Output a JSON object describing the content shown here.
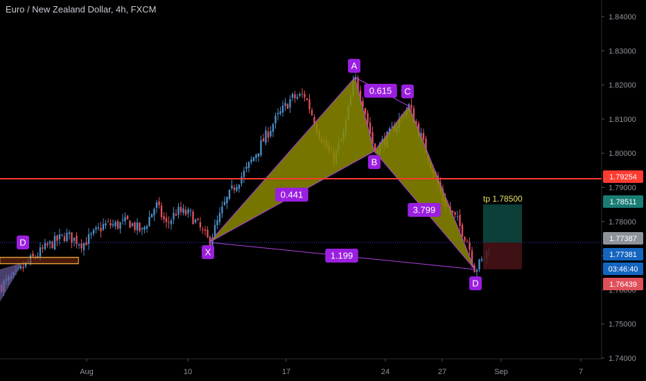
{
  "title": "Euro / New Zealand Dollar, 4h, FXCM",
  "colors": {
    "background": "#000000",
    "up_candle": "#4a90c8",
    "down_candle": "#e0505a",
    "pattern_fill": "#8a8a00",
    "pattern_edge": "#b040e0",
    "label_bg": "#9b1fe0",
    "resistance": "#ff3b30",
    "axis_text": "#8e929b",
    "tp_text": "#e8e26a"
  },
  "chart_data": {
    "type": "candlestick",
    "y_ticks": [
      "1.84000",
      "1.83000",
      "1.82000",
      "1.81000",
      "1.80000",
      "1.79000",
      "1.78000",
      "1.77000",
      "1.76000",
      "1.75000",
      "1.74000"
    ],
    "ylim": [
      1.739,
      1.8455
    ],
    "x_ticks": [
      "Aug",
      "10",
      "17",
      "24",
      "27",
      "Sep",
      "7"
    ],
    "price_labels": [
      {
        "value": "1.79254",
        "color": "#ff3b30"
      },
      {
        "value": "1.78511",
        "color": "#1a7d74"
      },
      {
        "value": "1.77387",
        "color": "#8e929b"
      },
      {
        "value": "1.77381",
        "color": "#1565c0"
      },
      {
        "value": "03:46:40",
        "color": "#1565c0"
      },
      {
        "value": "1.76439",
        "color": "#e0505a"
      }
    ],
    "resistance_level": 1.79254,
    "current_price": 1.77387,
    "pattern": {
      "points": [
        {
          "label": "X",
          "price": 1.7739
        },
        {
          "label": "A",
          "price": 1.8222
        },
        {
          "label": "B",
          "price": 1.8006
        },
        {
          "label": "C",
          "price": 1.8138
        },
        {
          "label": "D",
          "price": 1.766
        }
      ],
      "ratios": [
        "0.441",
        "0.615",
        "3.799",
        "1.199"
      ]
    },
    "left_pattern_label": "D",
    "take_profit": {
      "label": "tp 1.78500",
      "price": 1.785
    },
    "stop_zone_low": 1.766
  }
}
